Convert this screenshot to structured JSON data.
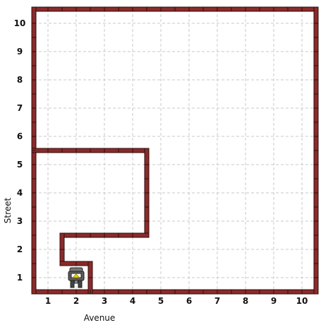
{
  "world": {
    "avenues": 10,
    "streets": 10,
    "grid_visible": true,
    "colors": {
      "wall_fill": "#8b2a2a",
      "wall_stroke": "#2e0d0d",
      "grid": "#c8c8c8",
      "background": "#ffffff"
    },
    "walls": {
      "note_units": "segments in world units: avenue a (x), street s (y); cell centers are integers, cell boundaries at half-integers",
      "segments": [
        [
          [
            0.5,
            0.5
          ],
          [
            10.5,
            0.5
          ]
        ],
        [
          [
            0.5,
            10.5
          ],
          [
            10.5,
            10.5
          ]
        ],
        [
          [
            0.5,
            0.5
          ],
          [
            0.5,
            10.5
          ]
        ],
        [
          [
            10.5,
            0.5
          ],
          [
            10.5,
            10.5
          ]
        ],
        [
          [
            0.5,
            5.5
          ],
          [
            4.5,
            5.5
          ]
        ],
        [
          [
            4.5,
            5.5
          ],
          [
            4.5,
            2.5
          ]
        ],
        [
          [
            4.5,
            2.5
          ],
          [
            1.5,
            2.5
          ]
        ],
        [
          [
            1.5,
            2.5
          ],
          [
            1.5,
            1.5
          ]
        ],
        [
          [
            1.5,
            1.5
          ],
          [
            2.5,
            1.5
          ]
        ],
        [
          [
            2.5,
            1.5
          ],
          [
            2.5,
            0.5
          ]
        ]
      ]
    },
    "robot": {
      "avenue": 2,
      "street": 1,
      "facing": "north",
      "icon": "robot-icon"
    }
  },
  "axes": {
    "x_label": "Avenue",
    "y_label": "Street",
    "x_ticks": [
      "1",
      "2",
      "3",
      "4",
      "5",
      "6",
      "7",
      "8",
      "9",
      "10"
    ],
    "y_ticks": [
      "1",
      "2",
      "3",
      "4",
      "5",
      "6",
      "7",
      "8",
      "9",
      "10"
    ]
  }
}
